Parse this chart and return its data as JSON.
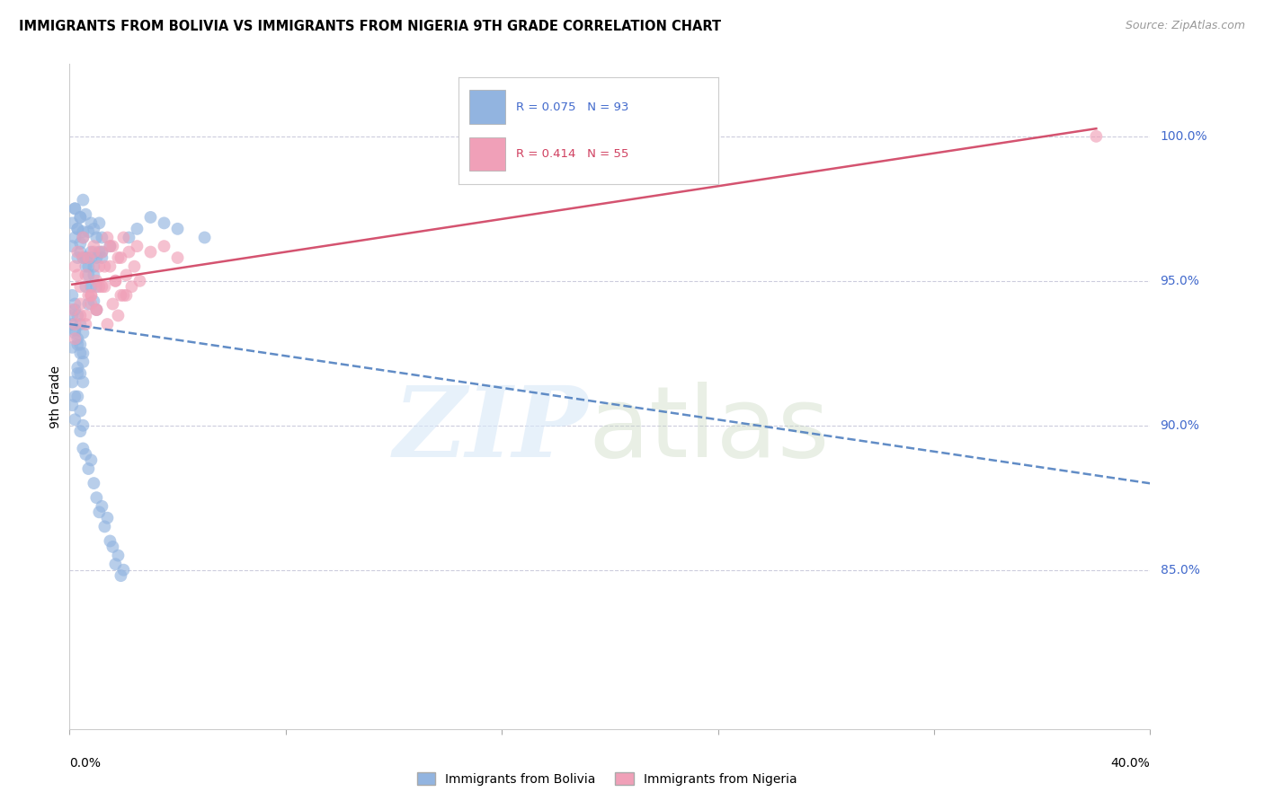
{
  "title": "IMMIGRANTS FROM BOLIVIA VS IMMIGRANTS FROM NIGERIA 9TH GRADE CORRELATION CHART",
  "source": "Source: ZipAtlas.com",
  "ylabel": "9th Grade",
  "ylabel_right_ticks": [
    "100.0%",
    "95.0%",
    "90.0%",
    "85.0%"
  ],
  "ylabel_right_values": [
    1.0,
    0.95,
    0.9,
    0.85
  ],
  "xlim": [
    0.0,
    0.4
  ],
  "ylim": [
    0.795,
    1.025
  ],
  "bolivia_color": "#92b4e0",
  "nigeria_color": "#f0a0b8",
  "bolivia_R": 0.075,
  "bolivia_N": 93,
  "nigeria_R": 0.414,
  "nigeria_N": 55,
  "bolivia_line_color": "#5080c0",
  "nigeria_line_color": "#d04060",
  "bolivia_x": [
    0.002,
    0.003,
    0.004,
    0.004,
    0.005,
    0.005,
    0.006,
    0.006,
    0.007,
    0.007,
    0.008,
    0.008,
    0.009,
    0.009,
    0.01,
    0.01,
    0.011,
    0.011,
    0.012,
    0.012,
    0.001,
    0.001,
    0.002,
    0.002,
    0.003,
    0.003,
    0.004,
    0.004,
    0.005,
    0.005,
    0.006,
    0.006,
    0.007,
    0.007,
    0.008,
    0.008,
    0.009,
    0.009,
    0.01,
    0.01,
    0.001,
    0.001,
    0.002,
    0.002,
    0.003,
    0.003,
    0.004,
    0.004,
    0.005,
    0.005,
    0.001,
    0.001,
    0.002,
    0.002,
    0.003,
    0.003,
    0.004,
    0.004,
    0.005,
    0.005,
    0.001,
    0.001,
    0.002,
    0.002,
    0.003,
    0.003,
    0.004,
    0.004,
    0.005,
    0.005,
    0.006,
    0.007,
    0.008,
    0.009,
    0.01,
    0.011,
    0.012,
    0.013,
    0.014,
    0.015,
    0.016,
    0.017,
    0.018,
    0.019,
    0.02,
    0.022,
    0.025,
    0.03,
    0.035,
    0.04,
    0.05,
    0.012,
    0.015
  ],
  "bolivia_y": [
    0.975,
    0.968,
    0.972,
    0.96,
    0.978,
    0.965,
    0.973,
    0.958,
    0.967,
    0.955,
    0.97,
    0.96,
    0.968,
    0.955,
    0.965,
    0.958,
    0.97,
    0.96,
    0.965,
    0.958,
    0.97,
    0.962,
    0.975,
    0.965,
    0.968,
    0.958,
    0.972,
    0.963,
    0.967,
    0.958,
    0.955,
    0.948,
    0.952,
    0.942,
    0.958,
    0.948,
    0.952,
    0.943,
    0.948,
    0.94,
    0.945,
    0.938,
    0.942,
    0.933,
    0.938,
    0.93,
    0.935,
    0.928,
    0.932,
    0.925,
    0.935,
    0.927,
    0.94,
    0.932,
    0.928,
    0.92,
    0.925,
    0.918,
    0.922,
    0.915,
    0.915,
    0.907,
    0.91,
    0.902,
    0.918,
    0.91,
    0.905,
    0.898,
    0.9,
    0.892,
    0.89,
    0.885,
    0.888,
    0.88,
    0.875,
    0.87,
    0.872,
    0.865,
    0.868,
    0.86,
    0.858,
    0.852,
    0.855,
    0.848,
    0.85,
    0.965,
    0.968,
    0.972,
    0.97,
    0.968,
    0.965,
    0.96,
    0.962
  ],
  "nigeria_x": [
    0.002,
    0.003,
    0.004,
    0.005,
    0.006,
    0.007,
    0.008,
    0.009,
    0.01,
    0.011,
    0.012,
    0.013,
    0.014,
    0.015,
    0.016,
    0.017,
    0.018,
    0.019,
    0.02,
    0.021,
    0.022,
    0.023,
    0.024,
    0.025,
    0.026,
    0.001,
    0.003,
    0.005,
    0.007,
    0.009,
    0.011,
    0.013,
    0.015,
    0.017,
    0.019,
    0.021,
    0.002,
    0.004,
    0.006,
    0.008,
    0.01,
    0.012,
    0.014,
    0.016,
    0.018,
    0.02,
    0.03,
    0.035,
    0.04,
    0.38,
    0.002,
    0.004,
    0.006,
    0.008,
    0.01
  ],
  "nigeria_y": [
    0.955,
    0.96,
    0.948,
    0.965,
    0.952,
    0.958,
    0.945,
    0.962,
    0.95,
    0.955,
    0.96,
    0.948,
    0.965,
    0.955,
    0.962,
    0.95,
    0.958,
    0.945,
    0.965,
    0.952,
    0.96,
    0.948,
    0.955,
    0.962,
    0.95,
    0.94,
    0.952,
    0.958,
    0.945,
    0.96,
    0.948,
    0.955,
    0.962,
    0.95,
    0.958,
    0.945,
    0.935,
    0.942,
    0.938,
    0.945,
    0.94,
    0.948,
    0.935,
    0.942,
    0.938,
    0.945,
    0.96,
    0.962,
    0.958,
    1.0,
    0.93,
    0.938,
    0.935,
    0.942,
    0.94
  ]
}
